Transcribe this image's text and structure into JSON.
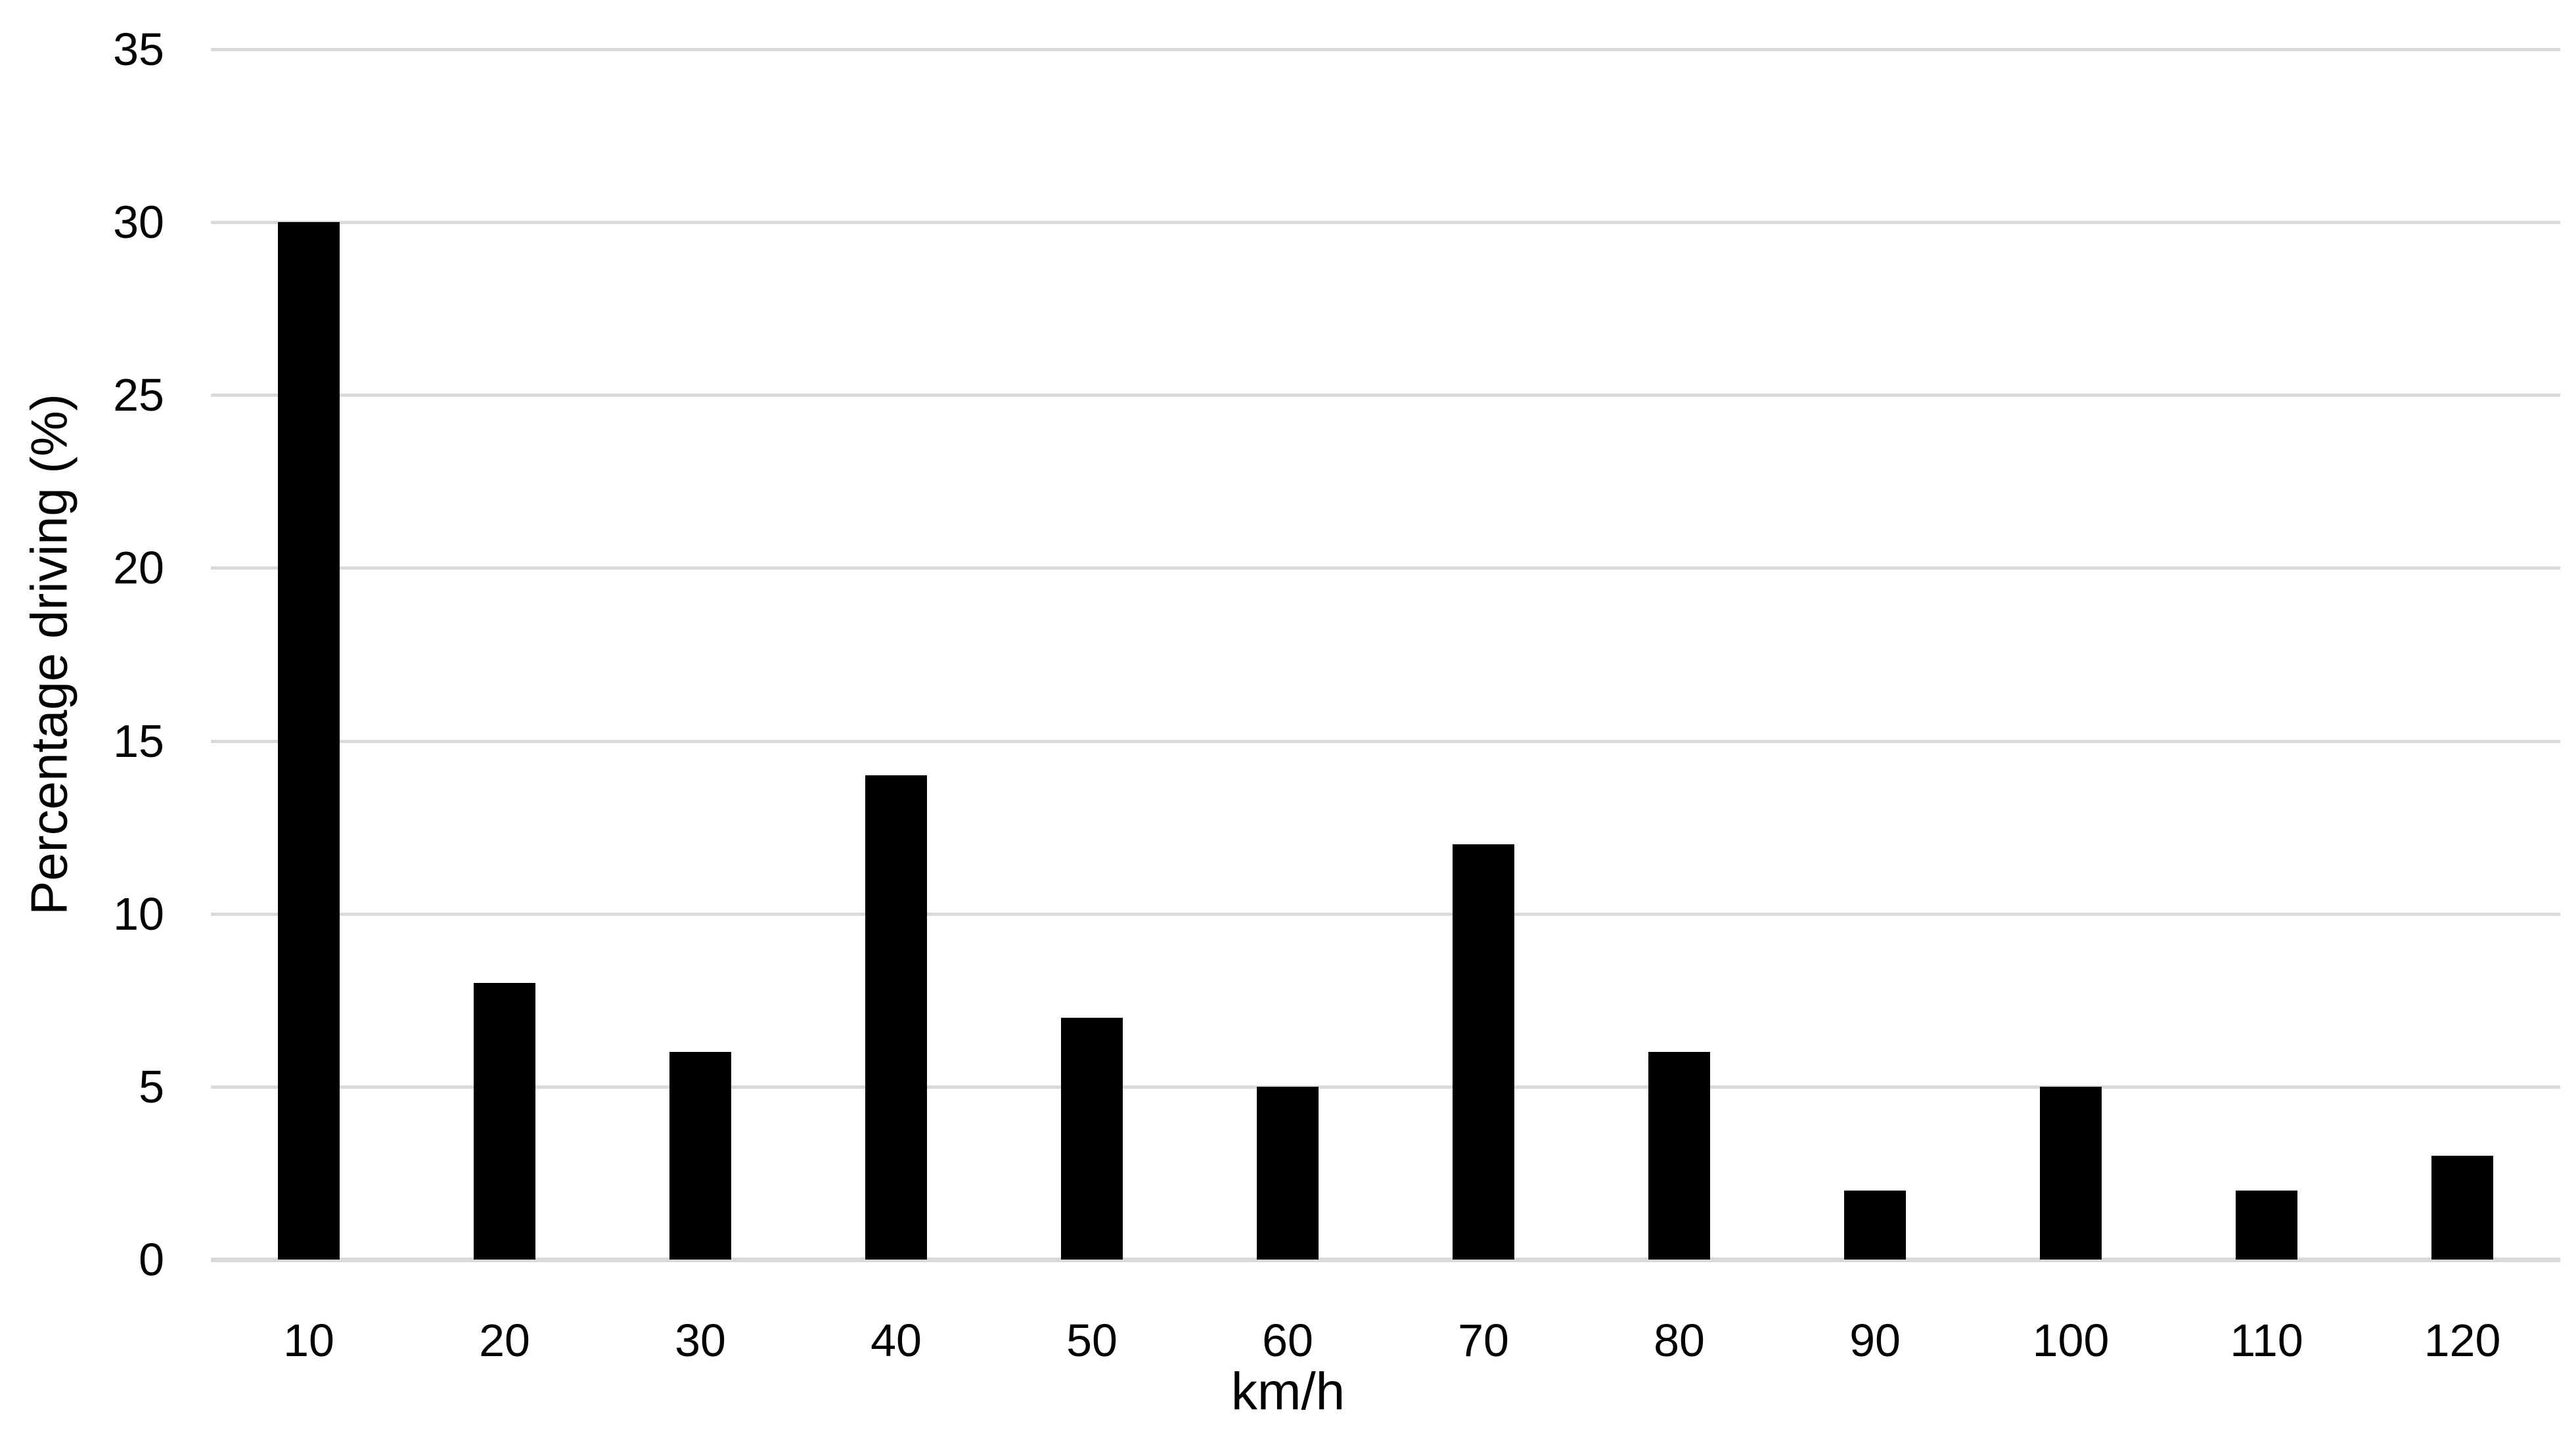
{
  "chart_data": {
    "type": "bar",
    "title": "",
    "categories": [
      "10",
      "20",
      "30",
      "40",
      "50",
      "60",
      "70",
      "80",
      "90",
      "100",
      "110",
      "120"
    ],
    "values": [
      30,
      8,
      6,
      14,
      7,
      5,
      12,
      6,
      2,
      5,
      2,
      3
    ],
    "xlabel": "km/h",
    "ylabel": "Percentage driving (%)",
    "yticks": [
      0,
      5,
      10,
      15,
      20,
      25,
      30,
      35
    ],
    "ylim": [
      0,
      35
    ],
    "grid": "horizontal-only",
    "legend": "none",
    "colors": {
      "bar": "#000000",
      "gridline": "#d9d9d9",
      "axis_line": "#d9d9d9",
      "text": "#000000",
      "background": "#ffffff"
    }
  }
}
